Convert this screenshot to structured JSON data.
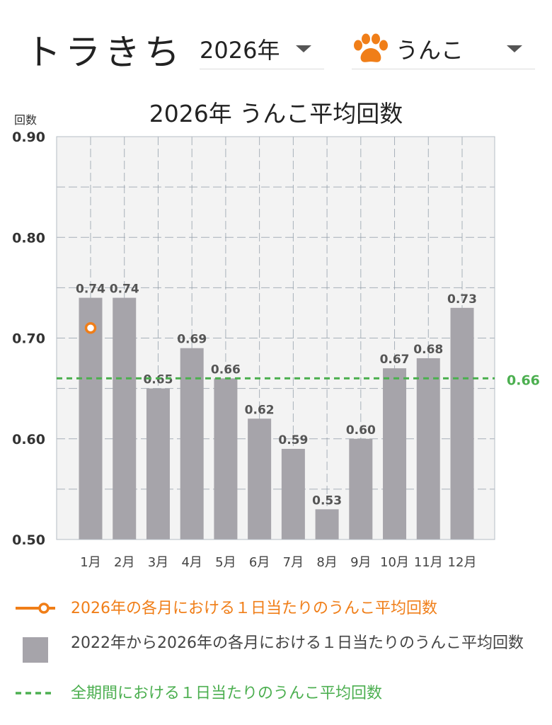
{
  "header": {
    "app_title": "トラきち",
    "year_select": {
      "value": "2026年"
    },
    "category_select": {
      "value": "うんこ",
      "icon": "paw-icon"
    }
  },
  "colors": {
    "bar": "#a6a4aa",
    "current_year": "#f07e18",
    "overall_avg": "#4caf50",
    "plot_bg": "#f3f3f3",
    "grid": "#8e9aa6"
  },
  "chart_data": {
    "type": "bar",
    "title": "2026年 うんこ平均回数",
    "ylabel": "回数",
    "xlabel": "",
    "ylim": [
      0.5,
      0.9
    ],
    "yticks": [
      "0.50",
      "0.60",
      "0.70",
      "0.80",
      "0.90"
    ],
    "grid": true,
    "categories": [
      "1月",
      "2月",
      "3月",
      "4月",
      "5月",
      "6月",
      "7月",
      "8月",
      "9月",
      "10月",
      "11月",
      "12月"
    ],
    "series": [
      {
        "name": "2022年から2026年の各月における１日当たりのうんこ平均回数",
        "type": "bar",
        "values": [
          0.74,
          0.74,
          0.65,
          0.69,
          0.66,
          0.62,
          0.59,
          0.53,
          0.6,
          0.67,
          0.68,
          0.73
        ],
        "labels": [
          "0.74",
          "0.74",
          "0.65",
          "0.69",
          "0.66",
          "0.62",
          "0.59",
          "0.53",
          "0.60",
          "0.67",
          "0.68",
          "0.73"
        ]
      },
      {
        "name": "2026年の各月における１日当たりのうんこ平均回数",
        "type": "line",
        "values": [
          0.71,
          null,
          null,
          null,
          null,
          null,
          null,
          null,
          null,
          null,
          null,
          null
        ]
      },
      {
        "name": "全期間における１日当たりのうんこ平均回数",
        "type": "hline",
        "value": 0.66,
        "label": "0.66"
      }
    ],
    "legend_position": "bottom"
  },
  "legend": [
    {
      "text": "2026年の各月における１日当たりのうんこ平均回数",
      "kind": "line-marker"
    },
    {
      "text": "2022年から2026年の各月における１日当たりのうんこ平均回数",
      "kind": "bar"
    },
    {
      "text": "全期間における１日当たりのうんこ平均回数",
      "kind": "dashed"
    }
  ]
}
